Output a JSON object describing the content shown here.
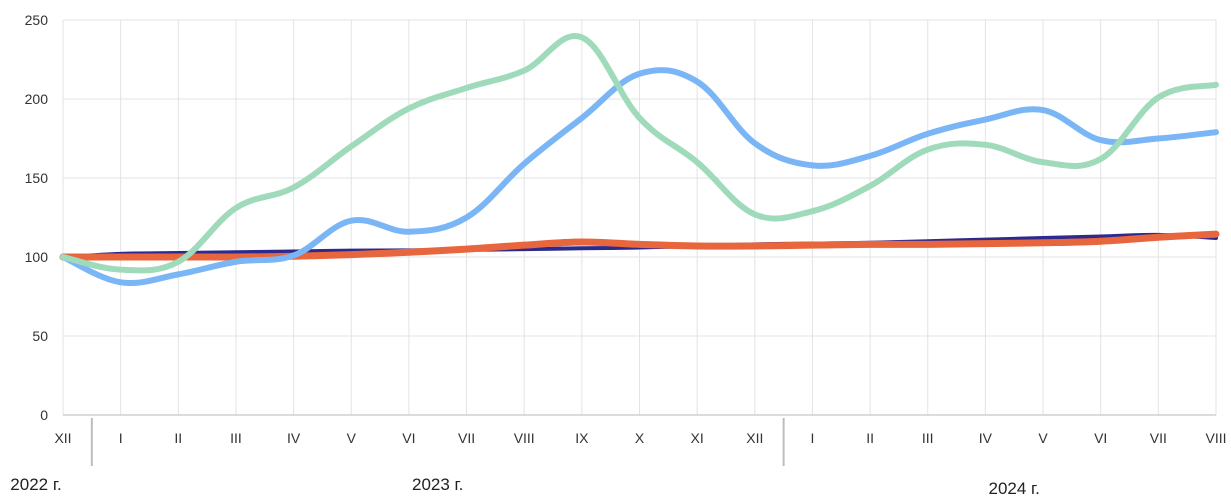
{
  "chart_data": {
    "type": "line",
    "title": "",
    "xlabel": "",
    "ylabel": "",
    "ylim": [
      0,
      250
    ],
    "yticks": [
      0,
      50,
      100,
      150,
      200,
      250
    ],
    "grid": true,
    "legend": "none",
    "categories": [
      "XII",
      "I",
      "II",
      "III",
      "IV",
      "V",
      "VI",
      "VII",
      "VIII",
      "IX",
      "X",
      "XI",
      "XII",
      "I",
      "II",
      "III",
      "IV",
      "V",
      "VI",
      "VII",
      "VIII"
    ],
    "year_groups": [
      {
        "label": "2022 г.",
        "start": 0,
        "end": 0
      },
      {
        "label": "2023 г.",
        "start": 1,
        "end": 12
      },
      {
        "label": "2024 г.",
        "start": 13,
        "end": 20
      }
    ],
    "series": [
      {
        "color": "#2e2a8c",
        "width": 4,
        "values": [
          100,
          102,
          102.5,
          103,
          103.5,
          104,
          104.2,
          104.5,
          105,
          105.5,
          106,
          107,
          108,
          108.5,
          109,
          110,
          111,
          112,
          113,
          114,
          112
        ]
      },
      {
        "color": "#e8663d",
        "width": 7,
        "values": [
          100,
          100,
          100,
          100,
          100.5,
          101.5,
          103,
          105,
          107.5,
          109.5,
          108,
          107,
          107,
          107.5,
          108,
          108,
          108.5,
          109,
          110,
          112.5,
          114.5
        ]
      },
      {
        "color": "#7ab6f5",
        "width": 6,
        "values": [
          100,
          84,
          89,
          97,
          101,
          123,
          116,
          125,
          159,
          188,
          216,
          211,
          172,
          158,
          164,
          178,
          187,
          193,
          174,
          175,
          179
        ]
      },
      {
        "color": "#9fdbba",
        "width": 6,
        "values": [
          100,
          92,
          97,
          131,
          144,
          170,
          194,
          207,
          218,
          239,
          188,
          160,
          127,
          129,
          145,
          168,
          171,
          160,
          162,
          201,
          209
        ]
      }
    ]
  }
}
